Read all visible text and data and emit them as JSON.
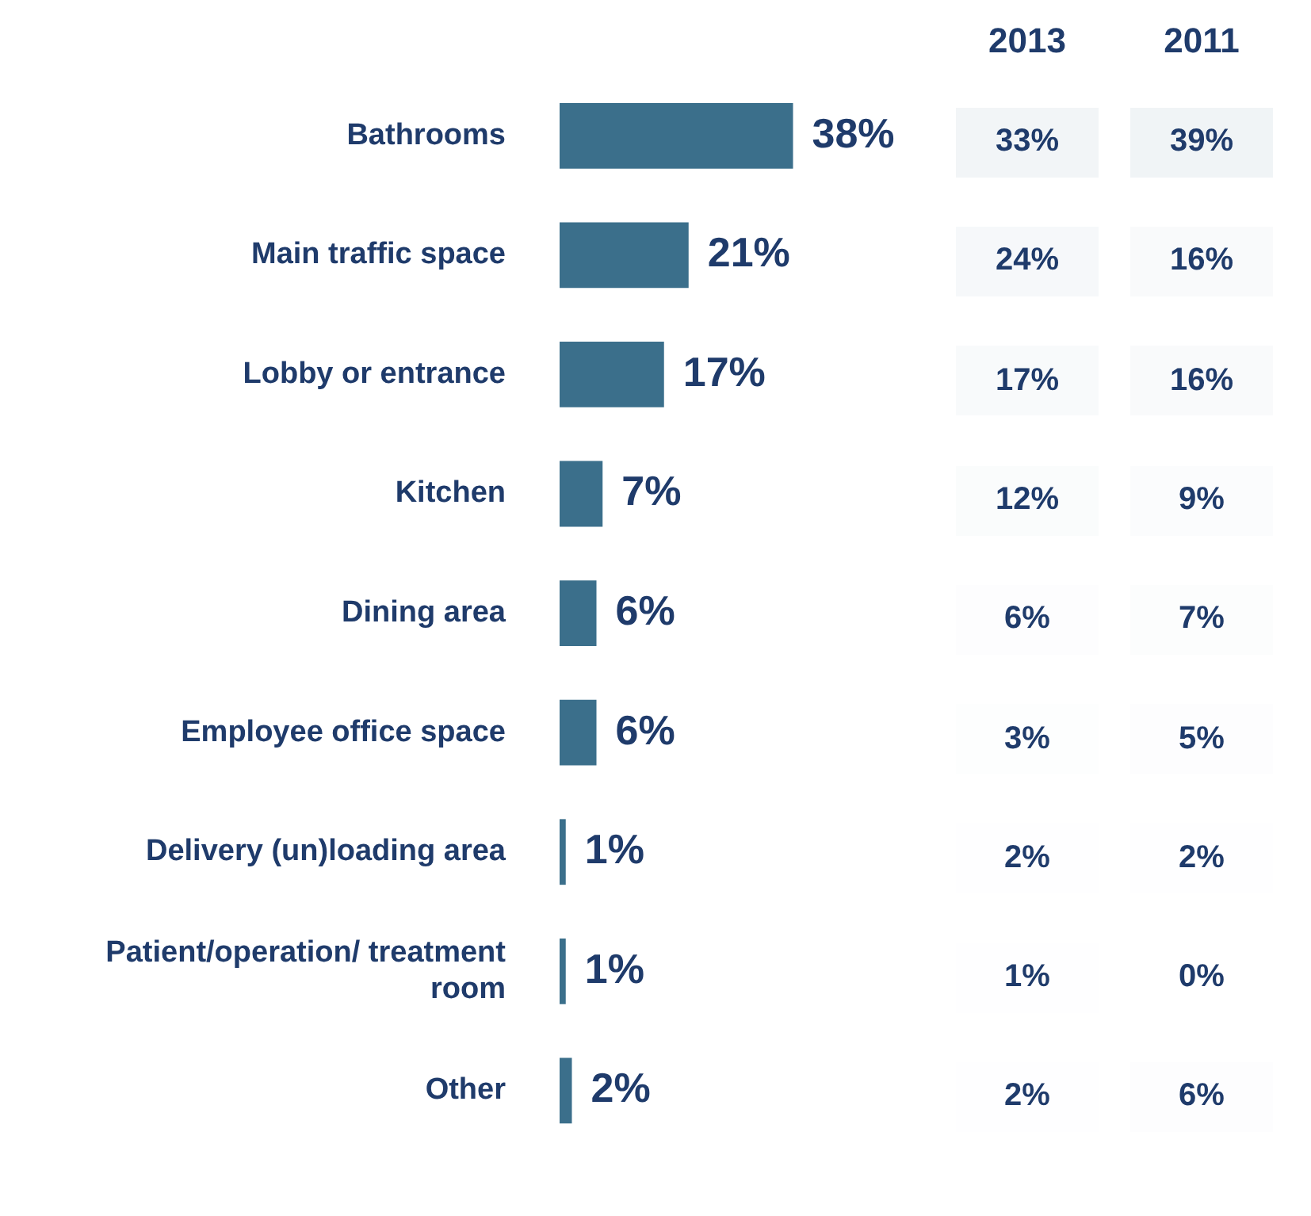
{
  "chart_data": [
    {
      "type": "bar",
      "orientation": "horizontal",
      "grid": false,
      "legend": false,
      "tick_labels": "y",
      "categories": [
        "Bathrooms",
        "Main traffic space",
        "Lobby or entrance",
        "Kitchen",
        "Dining area",
        "Employee office space",
        "Delivery (un)loading area",
        "Patient/operation/ treatment room",
        "Other"
      ],
      "series": [
        {
          "color": "#3b6f8b",
          "values": [
            38,
            21,
            17,
            7,
            6,
            6,
            1,
            1,
            2
          ],
          "value_labels": [
            "38%",
            "21%",
            "17%",
            "7%",
            "6%",
            "6%",
            "1%",
            "1%",
            "2%"
          ]
        }
      ]
    },
    {
      "type": "heatmap",
      "categories": [
        "2013",
        "2011"
      ],
      "y_categories": [
        null,
        null,
        null,
        null,
        null,
        null,
        null,
        null,
        null
      ],
      "cells": [
        [
          33,
          39
        ],
        [
          24,
          16
        ],
        [
          17,
          16
        ],
        [
          12,
          9
        ],
        [
          6,
          7
        ],
        [
          3,
          5
        ],
        [
          2,
          2
        ],
        [
          1,
          0
        ],
        [
          2,
          6
        ]
      ],
      "cell_labels": [
        [
          "33%",
          "39%"
        ],
        [
          "24%",
          "16%"
        ],
        [
          "17%",
          "16%"
        ],
        [
          "12%",
          "9%"
        ],
        [
          "6%",
          "7%"
        ],
        [
          "3%",
          "5%"
        ],
        [
          "2%",
          "2%"
        ],
        [
          "1%",
          "0%"
        ],
        [
          "2%",
          "6%"
        ]
      ]
    }
  ]
}
